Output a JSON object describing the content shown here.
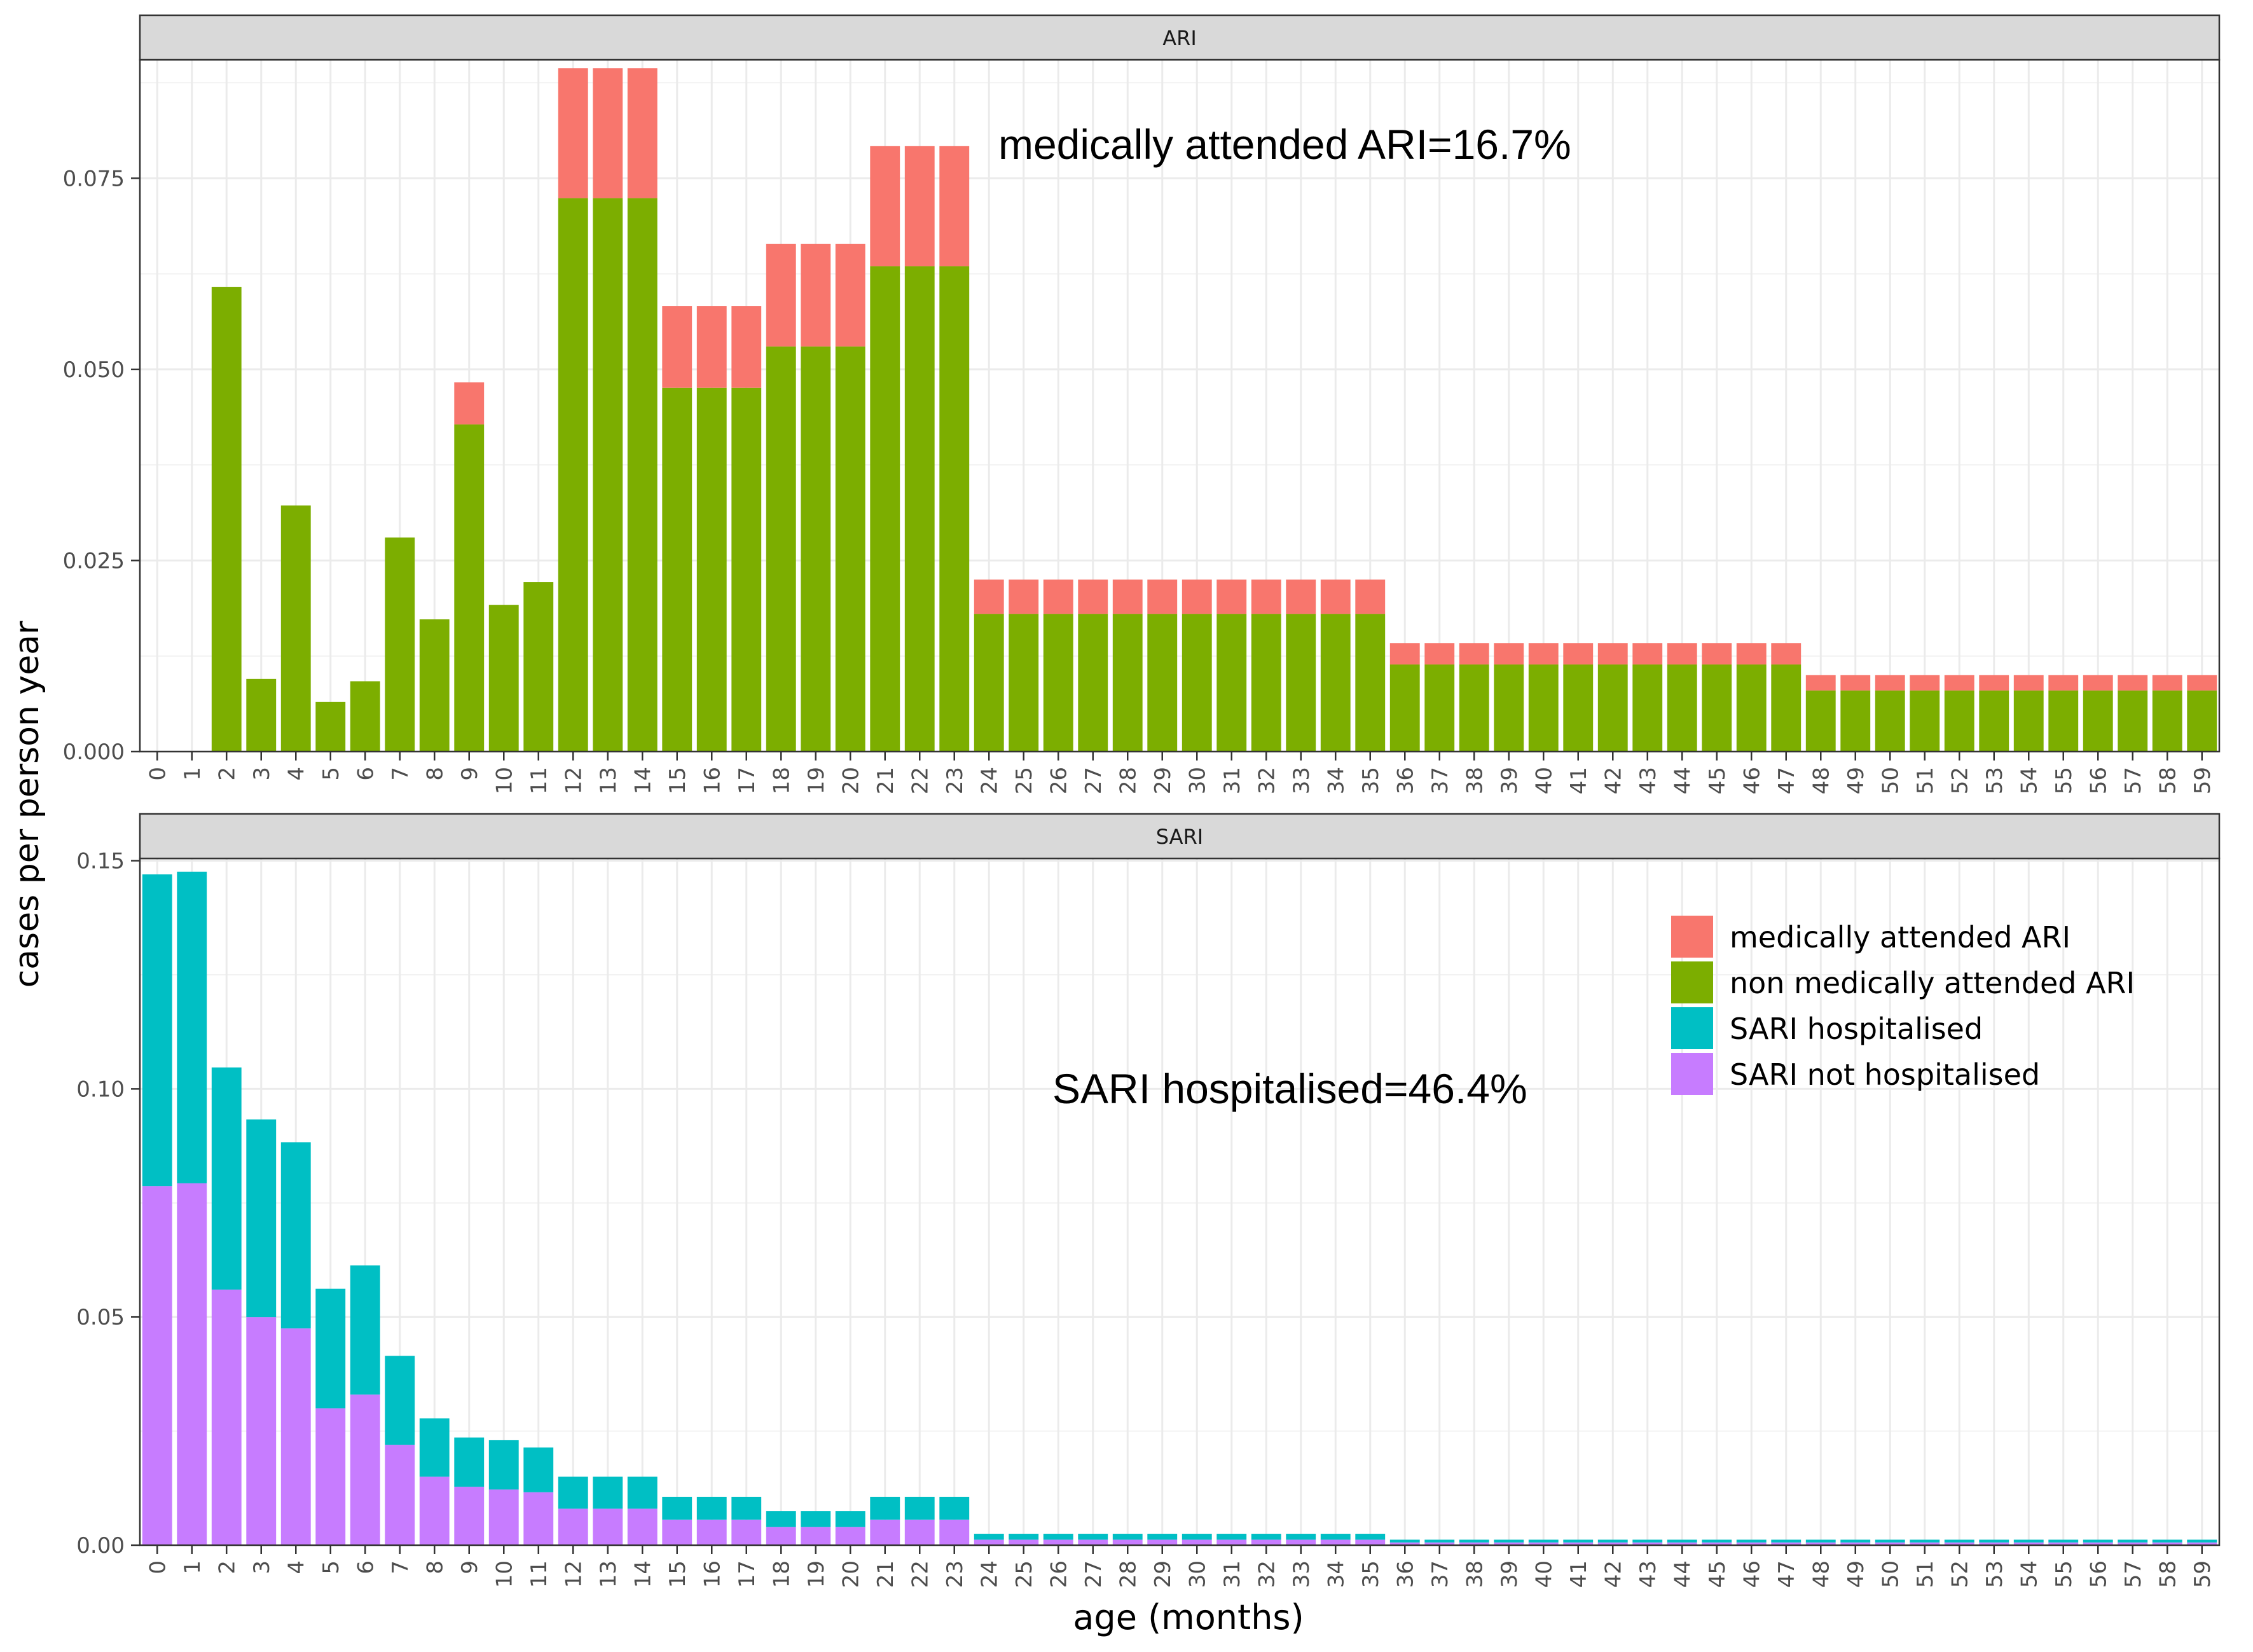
{
  "chart_data": [
    {
      "type": "bar",
      "stacked": true,
      "panel_title": "ARI",
      "annotation": "medically attended ARI=16.7%",
      "categories": [
        "0",
        "1",
        "2",
        "3",
        "4",
        "5",
        "6",
        "7",
        "8",
        "9",
        "10",
        "11",
        "12",
        "13",
        "14",
        "15",
        "16",
        "17",
        "18",
        "19",
        "20",
        "21",
        "22",
        "23",
        "24",
        "25",
        "26",
        "27",
        "28",
        "29",
        "30",
        "31",
        "32",
        "33",
        "34",
        "35",
        "36",
        "37",
        "38",
        "39",
        "40",
        "41",
        "42",
        "43",
        "44",
        "45",
        "46",
        "47",
        "48",
        "49",
        "50",
        "51",
        "52",
        "53",
        "54",
        "55",
        "56",
        "57",
        "58",
        "59"
      ],
      "ylim": [
        0,
        0.0905
      ],
      "yticks": [
        0.0,
        0.025,
        0.05,
        0.075
      ],
      "ytick_labels": [
        "0.000",
        "0.025",
        "0.050",
        "0.075"
      ],
      "grid": true,
      "series": [
        {
          "name": "non medically attended ARI",
          "color": "#7CAE00",
          "values": [
            0,
            0,
            0.0608,
            0.0095,
            0.0322,
            0.0065,
            0.0092,
            0.028,
            0.0173,
            0.0428,
            0.0192,
            0.0222,
            0.0724,
            0.0724,
            0.0724,
            0.0476,
            0.0476,
            0.0476,
            0.053,
            0.053,
            0.053,
            0.0635,
            0.0635,
            0.0635,
            0.018,
            0.018,
            0.018,
            0.018,
            0.018,
            0.018,
            0.018,
            0.018,
            0.018,
            0.018,
            0.018,
            0.018,
            0.0114,
            0.0114,
            0.0114,
            0.0114,
            0.0114,
            0.0114,
            0.0114,
            0.0114,
            0.0114,
            0.0114,
            0.0114,
            0.0114,
            0.008,
            0.008,
            0.008,
            0.008,
            0.008,
            0.008,
            0.008,
            0.008,
            0.008,
            0.008,
            0.008,
            0.008
          ]
        },
        {
          "name": "medically attended ARI",
          "color": "#F8766D",
          "values": [
            0,
            0,
            0,
            0,
            0,
            0,
            0,
            0,
            0,
            0.0055,
            0,
            0,
            0.017,
            0.017,
            0.017,
            0.0107,
            0.0107,
            0.0107,
            0.0134,
            0.0134,
            0.0134,
            0.0157,
            0.0157,
            0.0157,
            0.0045,
            0.0045,
            0.0045,
            0.0045,
            0.0045,
            0.0045,
            0.0045,
            0.0045,
            0.0045,
            0.0045,
            0.0045,
            0.0045,
            0.0028,
            0.0028,
            0.0028,
            0.0028,
            0.0028,
            0.0028,
            0.0028,
            0.0028,
            0.0028,
            0.0028,
            0.0028,
            0.0028,
            0.002,
            0.002,
            0.002,
            0.002,
            0.002,
            0.002,
            0.002,
            0.002,
            0.002,
            0.002,
            0.002,
            0.002
          ]
        }
      ]
    },
    {
      "type": "bar",
      "stacked": true,
      "panel_title": "SARI",
      "annotation": "SARI hospitalised=46.4%",
      "categories": [
        "0",
        "1",
        "2",
        "3",
        "4",
        "5",
        "6",
        "7",
        "8",
        "9",
        "10",
        "11",
        "12",
        "13",
        "14",
        "15",
        "16",
        "17",
        "18",
        "19",
        "20",
        "21",
        "22",
        "23",
        "24",
        "25",
        "26",
        "27",
        "28",
        "29",
        "30",
        "31",
        "32",
        "33",
        "34",
        "35",
        "36",
        "37",
        "38",
        "39",
        "40",
        "41",
        "42",
        "43",
        "44",
        "45",
        "46",
        "47",
        "48",
        "49",
        "50",
        "51",
        "52",
        "53",
        "54",
        "55",
        "56",
        "57",
        "58",
        "59"
      ],
      "ylim": [
        0,
        0.1505
      ],
      "yticks": [
        0.0,
        0.05,
        0.1,
        0.15
      ],
      "ytick_labels": [
        "0.00",
        "0.05",
        "0.10",
        "0.15"
      ],
      "grid": true,
      "series": [
        {
          "name": "SARI not hospitalised",
          "color": "#C77CFF",
          "values": [
            0.0787,
            0.0793,
            0.056,
            0.05,
            0.0475,
            0.03,
            0.033,
            0.022,
            0.015,
            0.0128,
            0.0122,
            0.0116,
            0.008,
            0.008,
            0.008,
            0.0056,
            0.0056,
            0.0056,
            0.004,
            0.004,
            0.004,
            0.0056,
            0.0056,
            0.0056,
            0.0012,
            0.0012,
            0.0012,
            0.0012,
            0.0012,
            0.0012,
            0.0012,
            0.0012,
            0.0012,
            0.0012,
            0.0012,
            0.0012,
            0.0006,
            0.0006,
            0.0006,
            0.0006,
            0.0006,
            0.0006,
            0.0006,
            0.0006,
            0.0006,
            0.0006,
            0.0006,
            0.0006,
            0.0006,
            0.0006,
            0.0006,
            0.0006,
            0.0006,
            0.0006,
            0.0006,
            0.0006,
            0.0006,
            0.0006,
            0.0006,
            0.0006
          ]
        },
        {
          "name": "SARI hospitalised",
          "color": "#00BFC4",
          "values": [
            0.0683,
            0.0683,
            0.0487,
            0.0433,
            0.0408,
            0.0262,
            0.0283,
            0.0195,
            0.0128,
            0.0108,
            0.0108,
            0.0098,
            0.007,
            0.007,
            0.007,
            0.005,
            0.005,
            0.005,
            0.0035,
            0.0035,
            0.0035,
            0.005,
            0.005,
            0.005,
            0.0013,
            0.0013,
            0.0013,
            0.0013,
            0.0013,
            0.0013,
            0.0013,
            0.0013,
            0.0013,
            0.0013,
            0.0013,
            0.0013,
            0.0006,
            0.0006,
            0.0006,
            0.0006,
            0.0006,
            0.0006,
            0.0006,
            0.0006,
            0.0006,
            0.0006,
            0.0006,
            0.0006,
            0.0006,
            0.0006,
            0.0006,
            0.0006,
            0.0006,
            0.0006,
            0.0006,
            0.0006,
            0.0006,
            0.0006,
            0.0006,
            0.0006
          ]
        }
      ]
    }
  ],
  "xlabel": "age (months)",
  "ylabel": "cases per person year",
  "legend": {
    "position": "inside-top-right of SARI panel",
    "items": [
      {
        "label": "medically attended ARI",
        "color": "#F8766D"
      },
      {
        "label": "non medically attended ARI",
        "color": "#7CAE00"
      },
      {
        "label": "SARI hospitalised",
        "color": "#00BFC4"
      },
      {
        "label": "SARI not hospitalised",
        "color": "#C77CFF"
      }
    ]
  }
}
